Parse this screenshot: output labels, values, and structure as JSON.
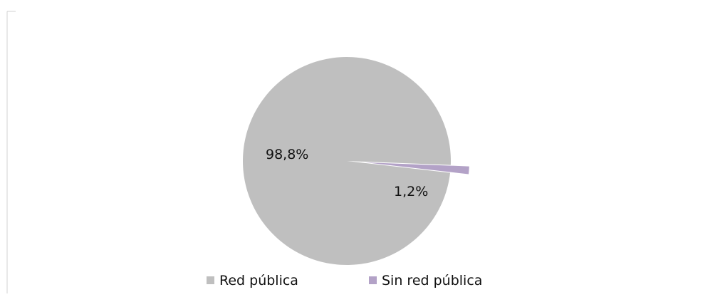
{
  "chart_data": {
    "type": "pie",
    "categories": [
      "Red pública",
      "Sin red pública"
    ],
    "values": [
      98.8,
      1.2
    ],
    "labels": [
      "98,8%",
      "1,2%"
    ],
    "colors": [
      "#bfbfbf",
      "#b3a2c7"
    ],
    "exploded": [
      false,
      true
    ],
    "legend": {
      "position": "bottom",
      "entries": [
        "Red pública",
        "Sin red pública"
      ]
    }
  }
}
